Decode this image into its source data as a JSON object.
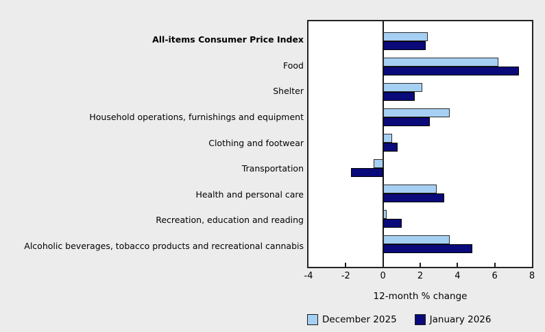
{
  "background": "#ECECEC",
  "chart_data": {
    "type": "bar",
    "orientation": "horizontal",
    "xlabel": "12-month % change",
    "xlim": [
      -4,
      8
    ],
    "xticks": [
      -4,
      -2,
      0,
      2,
      4,
      6,
      8
    ],
    "grid": false,
    "legend_position": "bottom",
    "plot_background": "#FFFFFF",
    "categories": [
      {
        "label": "All-items Consumer Price Index",
        "bold": true
      },
      {
        "label": "Food",
        "bold": false
      },
      {
        "label": "Shelter",
        "bold": false
      },
      {
        "label": "Household operations, furnishings and equipment",
        "bold": false
      },
      {
        "label": "Clothing and footwear",
        "bold": false
      },
      {
        "label": "Transportation",
        "bold": false
      },
      {
        "label": "Health and personal care",
        "bold": false
      },
      {
        "label": "Recreation, education and reading",
        "bold": false
      },
      {
        "label": "Alcoholic beverages, tobacco products and recreational cannabis",
        "bold": false
      }
    ],
    "series": [
      {
        "name": "December 2025",
        "color": "#A6D0F3",
        "values": [
          2.4,
          6.2,
          2.1,
          3.6,
          0.5,
          -0.5,
          2.9,
          0.2,
          3.6
        ]
      },
      {
        "name": "January 2026",
        "color": "#0A0A7A",
        "values": [
          2.3,
          7.3,
          1.7,
          2.5,
          0.8,
          -1.7,
          3.3,
          1.0,
          4.8
        ]
      }
    ]
  }
}
